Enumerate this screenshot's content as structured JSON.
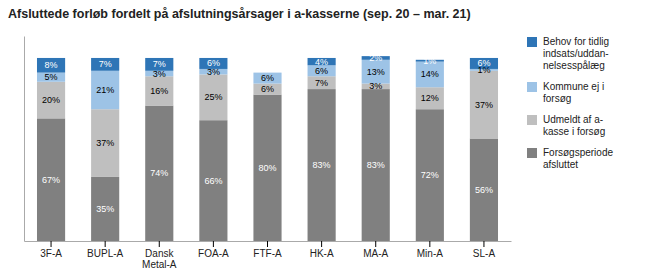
{
  "chart_data": {
    "type": "bar",
    "stacked": true,
    "title": "Afsluttede forløb fordelt på afslutningsårsager i a-kasserne (sep. 20 – mar. 21)",
    "categories": [
      "3F-A",
      "BUPL-A",
      "Dansk\nMetal-A",
      "FOA-A",
      "FTF-A",
      "HK-A",
      "MA-A",
      "Min-A",
      "SL-A"
    ],
    "series": [
      {
        "name": "Forsøgsperiode\nafsluttet",
        "color": "#808080",
        "values": [
          67,
          35,
          74,
          66,
          80,
          83,
          83,
          72,
          56
        ],
        "value_labels": [
          "67%",
          "35%",
          "74%",
          "66%",
          "80%",
          "83%",
          "83%",
          "72%",
          "56%"
        ]
      },
      {
        "name": "Udmeldt af a-\nkasse i forsøg",
        "color": "#bfbfbf",
        "values": [
          20,
          37,
          16,
          25,
          6,
          7,
          3,
          12,
          37
        ],
        "value_labels": [
          "20%",
          "37%",
          "16%",
          "25%",
          "6%",
          "7%",
          "3%",
          "12%",
          "37%"
        ]
      },
      {
        "name": "Kommune ej i\nforsøg",
        "color": "#9dc3e6",
        "values": [
          5,
          21,
          3,
          3,
          6,
          6,
          13,
          14,
          1
        ],
        "value_labels": [
          "5%",
          "21%",
          "3%",
          "3%",
          "6%",
          "6%",
          "13%",
          "14%",
          "1%"
        ]
      },
      {
        "name": "Behov for tidlig\nindsats/uddan-\nnelsesspålæg",
        "color": "#2e75b6",
        "values": [
          8,
          7,
          7,
          6,
          0,
          4,
          2,
          1,
          6
        ],
        "value_labels": [
          "8%",
          "7%",
          "7%",
          "6%",
          null,
          "4%",
          "2%",
          "1%",
          "6%"
        ]
      }
    ],
    "ylim": [
      0,
      112
    ],
    "data_labels": true,
    "tick_labels": "x",
    "grid": false,
    "legend": "right"
  }
}
